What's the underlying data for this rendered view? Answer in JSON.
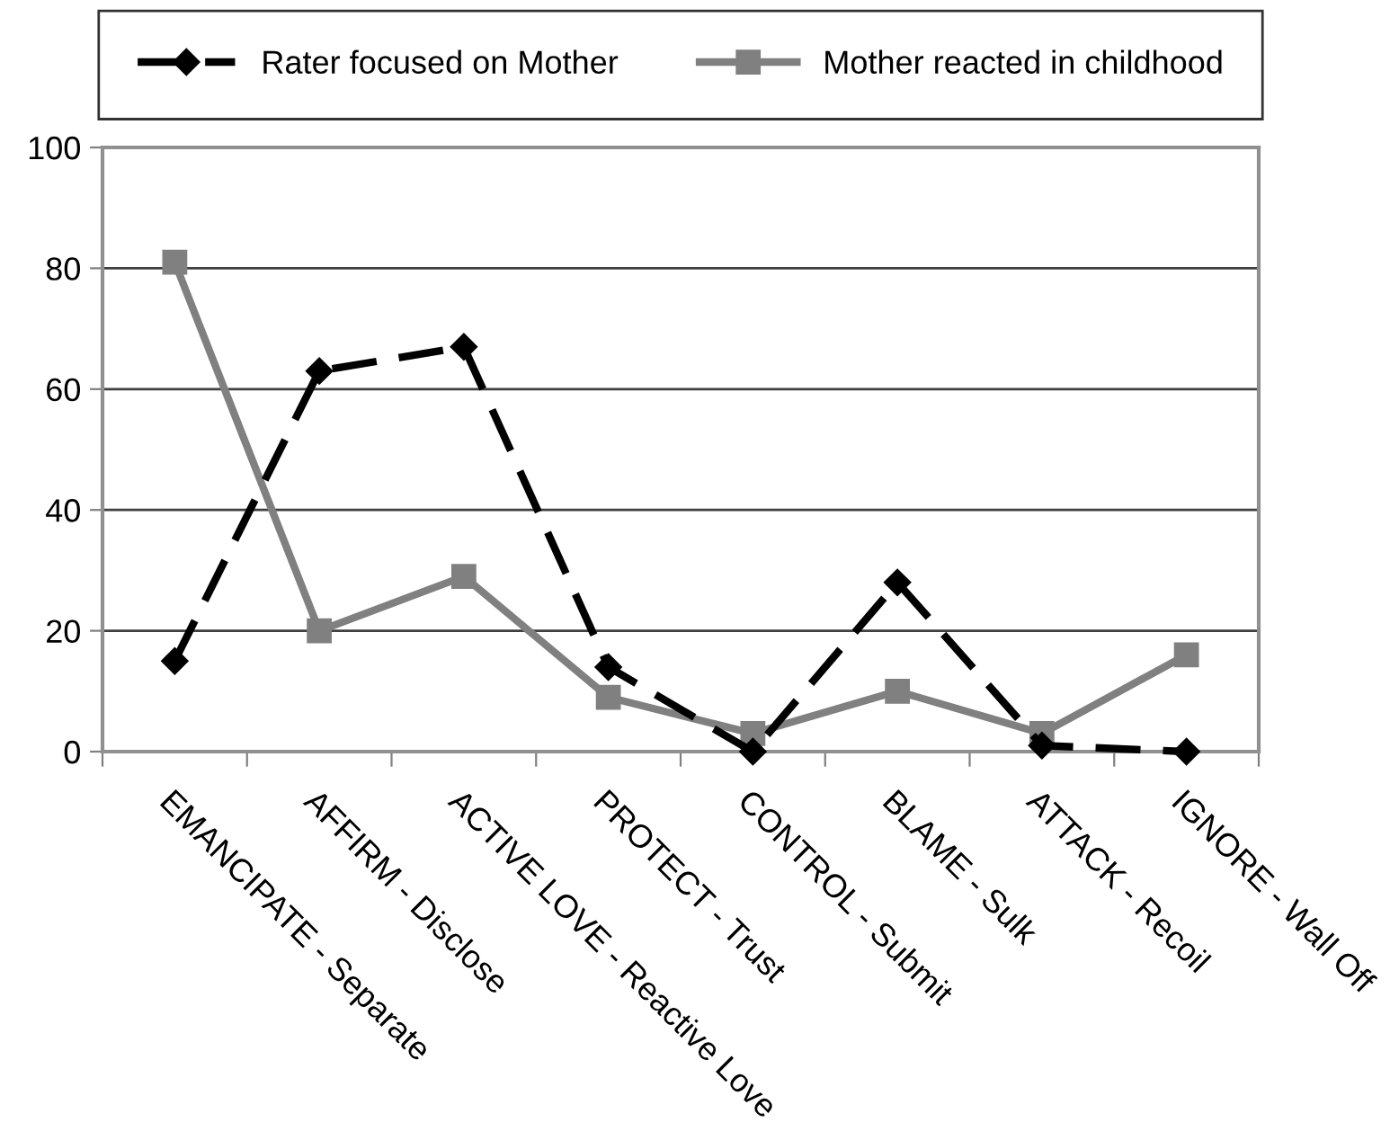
{
  "chart_data": {
    "type": "line",
    "categories": [
      "EMANCIPATE - Separate",
      "AFFIRM - Disclose",
      "ACTIVE LOVE - Reactive Love",
      "PROTECT - Trust",
      "CONTROL - Submit",
      "BLAME - Sulk",
      "ATTACK - Recoil",
      "IGNORE - Wall Off"
    ],
    "series": [
      {
        "name": "Rater focused on Mother",
        "color": "#000000",
        "marker": "diamond",
        "line_style": "dashed",
        "values": [
          15,
          63,
          67,
          14,
          0,
          28,
          1,
          0
        ]
      },
      {
        "name": "Mother reacted in childhood",
        "color": "#808080",
        "marker": "square",
        "line_style": "solid",
        "values": [
          81,
          20,
          29,
          9,
          3,
          10,
          3,
          16
        ]
      }
    ],
    "ylim": [
      0,
      100
    ],
    "yticks": [
      0,
      20,
      40,
      60,
      80,
      100
    ],
    "grid": "y",
    "legend": "top"
  }
}
